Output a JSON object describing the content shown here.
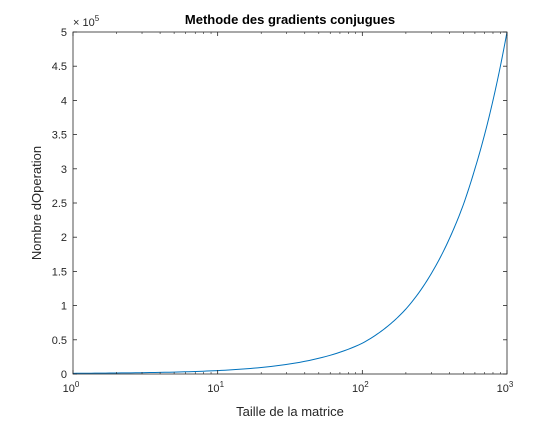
{
  "chart_data": {
    "type": "line",
    "title": "Methode des gradients conjugues",
    "xlabel": "Taille de la matrice",
    "ylabel": "Nombre dOperation",
    "xscale": "log",
    "xlim": [
      1,
      1000
    ],
    "ylim": [
      0,
      500000
    ],
    "y_exponent_label": "× 10",
    "y_exponent_power": "5",
    "x_ticks": [
      {
        "value": 1,
        "base": "10",
        "exp": "0"
      },
      {
        "value": 10,
        "base": "10",
        "exp": "1"
      },
      {
        "value": 100,
        "base": "10",
        "exp": "2"
      },
      {
        "value": 1000,
        "base": "10",
        "exp": "3"
      }
    ],
    "y_ticks": [
      {
        "value": 0,
        "label": "0"
      },
      {
        "value": 50000,
        "label": "0.5"
      },
      {
        "value": 100000,
        "label": "1"
      },
      {
        "value": 150000,
        "label": "1.5"
      },
      {
        "value": 200000,
        "label": "2"
      },
      {
        "value": 250000,
        "label": "2.5"
      },
      {
        "value": 300000,
        "label": "3"
      },
      {
        "value": 350000,
        "label": "3.5"
      },
      {
        "value": 400000,
        "label": "4"
      },
      {
        "value": 450000,
        "label": "4.5"
      },
      {
        "value": 500000,
        "label": "5"
      }
    ],
    "grid": false,
    "series": [
      {
        "color": "#0072BD",
        "x": [
          1,
          2,
          5,
          10,
          20,
          50,
          100,
          150,
          200,
          300,
          400,
          500,
          600,
          700,
          800,
          900,
          1000
        ],
        "y": [
          1000,
          1500,
          2800,
          5000,
          9500,
          23000,
          45000,
          70000,
          95000,
          147000,
          198000,
          248000,
          300000,
          350000,
          400000,
          450000,
          500000
        ]
      }
    ]
  }
}
